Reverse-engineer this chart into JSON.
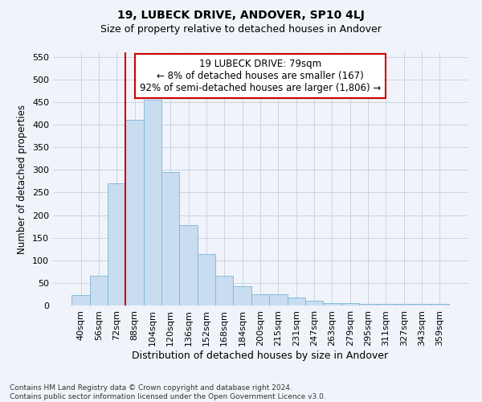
{
  "title": "19, LUBECK DRIVE, ANDOVER, SP10 4LJ",
  "subtitle": "Size of property relative to detached houses in Andover",
  "xlabel": "Distribution of detached houses by size in Andover",
  "ylabel": "Number of detached properties",
  "categories": [
    "40sqm",
    "56sqm",
    "72sqm",
    "88sqm",
    "104sqm",
    "120sqm",
    "136sqm",
    "152sqm",
    "168sqm",
    "184sqm",
    "200sqm",
    "215sqm",
    "231sqm",
    "247sqm",
    "263sqm",
    "279sqm",
    "295sqm",
    "311sqm",
    "327sqm",
    "343sqm",
    "359sqm"
  ],
  "values": [
    23,
    65,
    270,
    410,
    455,
    295,
    178,
    113,
    65,
    43,
    25,
    25,
    17,
    11,
    6,
    6,
    4,
    3,
    3,
    3,
    3
  ],
  "bar_color": "#c9ddf0",
  "bar_edge_color": "#7ab4d8",
  "annotation_text": "19 LUBECK DRIVE: 79sqm\n← 8% of detached houses are smaller (167)\n92% of semi-detached houses are larger (1,806) →",
  "annotation_box_facecolor": "#ffffff",
  "annotation_box_edgecolor": "#cc0000",
  "ylim": [
    0,
    560
  ],
  "yticks": [
    0,
    50,
    100,
    150,
    200,
    250,
    300,
    350,
    400,
    450,
    500,
    550
  ],
  "grid_color": "#c8d4e4",
  "footer_line1": "Contains HM Land Registry data © Crown copyright and database right 2024.",
  "footer_line2": "Contains public sector information licensed under the Open Government Licence v3.0.",
  "bg_color": "#f0f4fa",
  "plot_bg_color": "#f0f4fa",
  "title_fontsize": 10,
  "subtitle_fontsize": 9,
  "xlabel_fontsize": 9,
  "ylabel_fontsize": 8.5,
  "tick_fontsize": 8,
  "footer_fontsize": 6.5,
  "annot_fontsize": 8.5
}
